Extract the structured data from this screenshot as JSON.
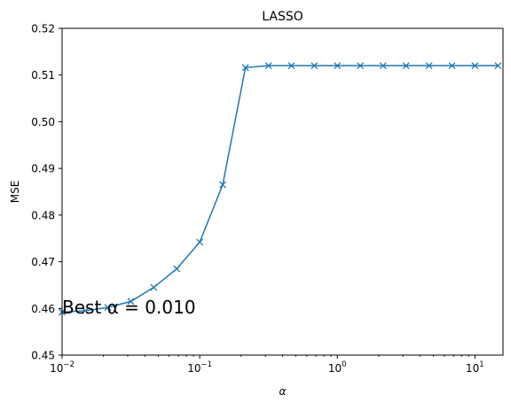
{
  "chart_data": {
    "type": "line",
    "title": "LASSO",
    "xlabel": "α",
    "ylabel": "MSE",
    "x_scale": "log",
    "xlim": [
      0.01,
      16
    ],
    "ylim": [
      0.45,
      0.52
    ],
    "grid": false,
    "line_color": "#1f77b4",
    "marker": "x",
    "annotation": "Best α = 0.010",
    "yticks": [
      {
        "value": 0.45,
        "label": "0.45"
      },
      {
        "value": 0.46,
        "label": "0.46"
      },
      {
        "value": 0.47,
        "label": "0.47"
      },
      {
        "value": 0.48,
        "label": "0.48"
      },
      {
        "value": 0.49,
        "label": "0.49"
      },
      {
        "value": 0.5,
        "label": "0.50"
      },
      {
        "value": 0.51,
        "label": "0.51"
      },
      {
        "value": 0.52,
        "label": "0.52"
      }
    ],
    "xticks": [
      {
        "value": 0.01,
        "base": "10",
        "exp": "−2"
      },
      {
        "value": 0.1,
        "base": "10",
        "exp": "−1"
      },
      {
        "value": 1,
        "base": "10",
        "exp": "0"
      },
      {
        "value": 10,
        "base": "10",
        "exp": "1"
      }
    ],
    "series": [
      {
        "x": [
          0.01,
          0.0147,
          0.0215,
          0.0316,
          0.0464,
          0.0681,
          0.1,
          0.147,
          0.215,
          0.316,
          0.464,
          0.681,
          1.0,
          1.47,
          2.15,
          3.16,
          4.64,
          6.81,
          10.0,
          14.7
        ],
        "y": [
          0.4592,
          0.4595,
          0.4602,
          0.4615,
          0.4645,
          0.4685,
          0.4742,
          0.4865,
          0.5116,
          0.512,
          0.512,
          0.512,
          0.512,
          0.512,
          0.512,
          0.512,
          0.512,
          0.512,
          0.512,
          0.512
        ]
      }
    ]
  }
}
